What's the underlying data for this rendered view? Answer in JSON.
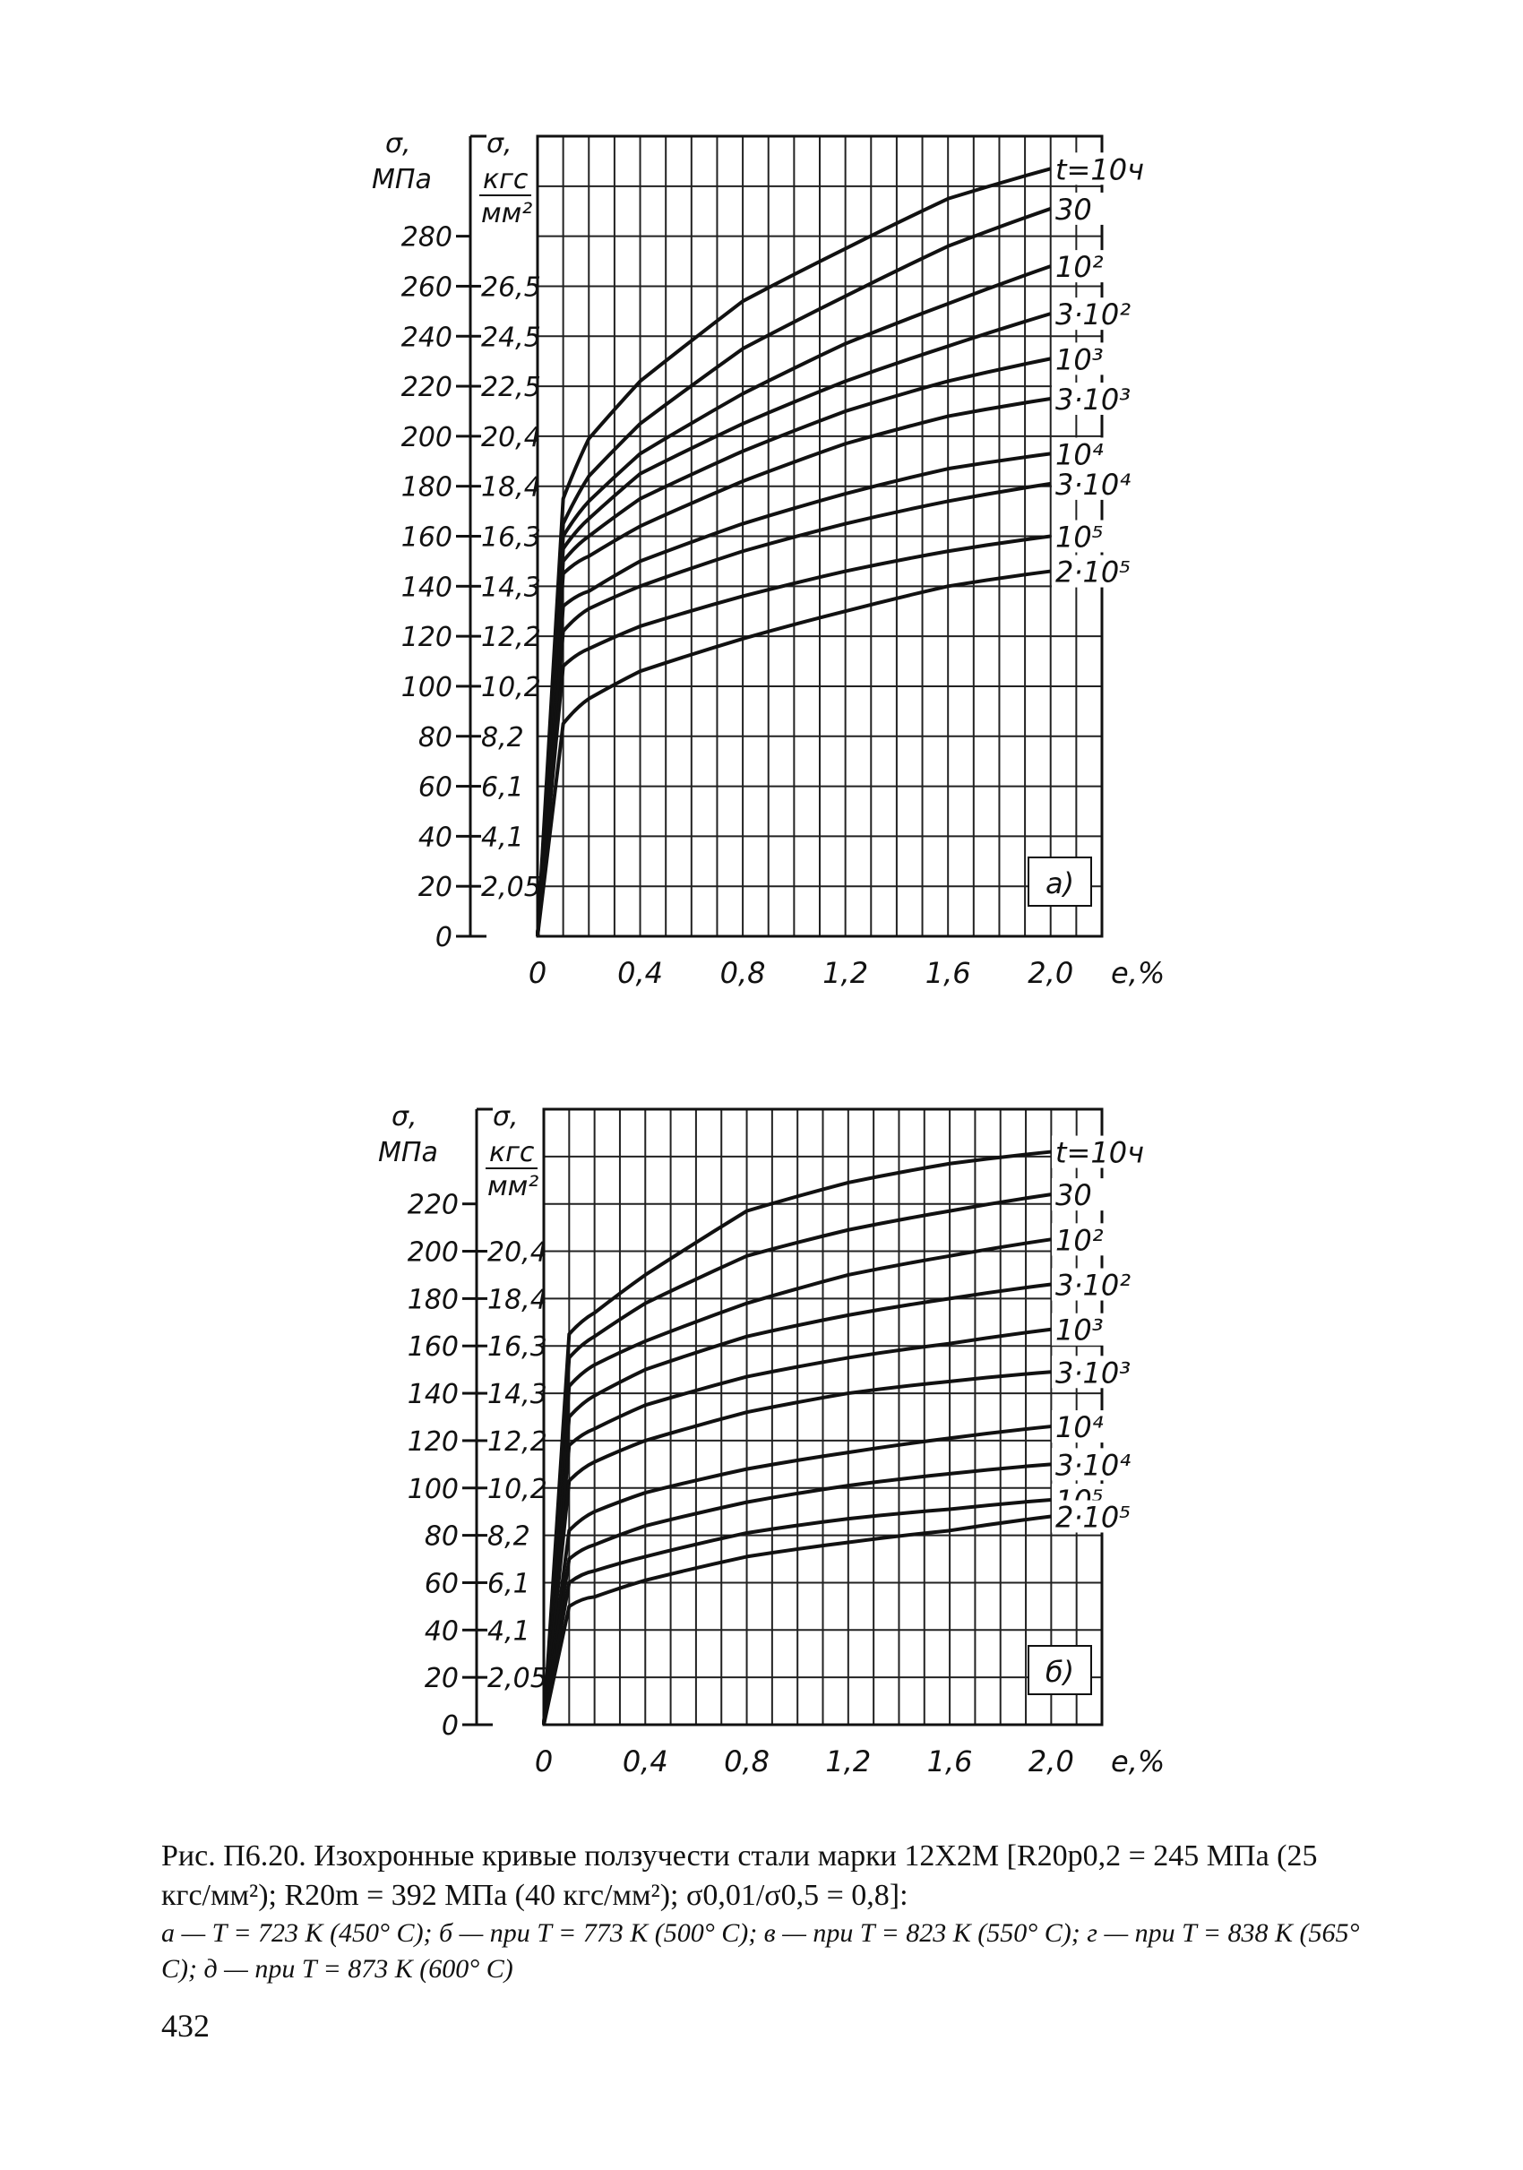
{
  "caption": {
    "title": "Рис. П6.20. Изохронные кривые ползучести стали марки 12Х2М [R20p0,2 = 245 МПа (25 кгс/мм²); R20m = 392 МПа (40 кгс/мм²); σ0,01/σ0,5 = 0,8]:",
    "legend": "а — T = 723 K (450° C); б — при T = 773 K (500° C); в — при T = 823 K (550° C); г — при T = 838 K (565° C); д — при T = 873 K (600° C)"
  },
  "page_number": "432",
  "chart_data": [
    {
      "type": "line",
      "panel_label": "а)",
      "xlabel": "e,%",
      "ylabel": "σ, МПа",
      "ylabel_secondary": "σ, кгс/мм²",
      "xlim": [
        0,
        2.2
      ],
      "ylim": [
        0,
        320
      ],
      "x_ticks": [
        "0",
        "0,4",
        "0,8",
        "1,2",
        "1,6",
        "2,0"
      ],
      "x_tick_values": [
        0,
        0.4,
        0.8,
        1.2,
        1.6,
        2.0
      ],
      "y_ticks": [
        "0",
        "20",
        "40",
        "60",
        "80",
        "100",
        "120",
        "140",
        "160",
        "180",
        "200",
        "220",
        "240",
        "260",
        "280"
      ],
      "y_tick_values": [
        0,
        20,
        40,
        60,
        80,
        100,
        120,
        140,
        160,
        180,
        200,
        220,
        240,
        260,
        280
      ],
      "y2_ticks": [
        "2,05",
        "4,1",
        "6,1",
        "8,2",
        "10,2",
        "12,2",
        "14,3",
        "16,3",
        "18,4",
        "20,4",
        "22,5",
        "24,5",
        "26,5"
      ],
      "y2_tick_values": [
        20,
        40,
        60,
        80,
        100,
        120,
        140,
        160,
        180,
        200,
        220,
        240,
        260
      ],
      "grid": true,
      "x": [
        0.1,
        0.2,
        0.4,
        0.8,
        1.2,
        1.6,
        2.0
      ],
      "series": [
        {
          "name": "t=10ч",
          "values": [
            175,
            199,
            222,
            254,
            275,
            295,
            307
          ]
        },
        {
          "name": "30",
          "values": [
            165,
            184,
            205,
            235,
            256,
            276,
            291
          ]
        },
        {
          "name": "10²",
          "values": [
            160,
            174,
            193,
            217,
            237,
            253,
            268
          ]
        },
        {
          "name": "3·10²",
          "values": [
            155,
            167,
            185,
            205,
            222,
            236,
            249
          ]
        },
        {
          "name": "10³",
          "values": [
            150,
            160,
            175,
            194,
            210,
            222,
            231
          ]
        },
        {
          "name": "3·10³",
          "values": [
            145,
            152,
            164,
            182,
            197,
            208,
            215
          ]
        },
        {
          "name": "10⁴",
          "values": [
            132,
            138,
            150,
            165,
            177,
            187,
            193
          ]
        },
        {
          "name": "3·10⁴",
          "values": [
            122,
            131,
            140,
            154,
            165,
            174,
            181
          ]
        },
        {
          "name": "10⁵",
          "values": [
            108,
            115,
            124,
            136,
            146,
            154,
            160
          ]
        },
        {
          "name": "2·10⁵",
          "values": [
            85,
            95,
            106,
            119,
            130,
            140,
            146
          ]
        }
      ]
    },
    {
      "type": "line",
      "panel_label": "б)",
      "xlabel": "e,%",
      "ylabel": "σ, МПа",
      "ylabel_secondary": "σ, кгс/мм²",
      "xlim": [
        0,
        2.2
      ],
      "ylim": [
        0,
        260
      ],
      "x_ticks": [
        "0",
        "0,4",
        "0,8",
        "1,2",
        "1,6",
        "2,0"
      ],
      "x_tick_values": [
        0,
        0.4,
        0.8,
        1.2,
        1.6,
        2.0
      ],
      "y_ticks": [
        "0",
        "20",
        "40",
        "60",
        "80",
        "100",
        "120",
        "140",
        "160",
        "180",
        "200",
        "220"
      ],
      "y_tick_values": [
        0,
        20,
        40,
        60,
        80,
        100,
        120,
        140,
        160,
        180,
        200,
        220
      ],
      "y2_ticks": [
        "2,05",
        "4,1",
        "6,1",
        "8,2",
        "10,2",
        "12,2",
        "14,3",
        "16,3",
        "18,4",
        "20,4"
      ],
      "y2_tick_values": [
        20,
        40,
        60,
        80,
        100,
        120,
        140,
        160,
        180,
        200
      ],
      "grid": true,
      "x": [
        0.1,
        0.2,
        0.4,
        0.8,
        1.2,
        1.6,
        2.0
      ],
      "series": [
        {
          "name": "t=10ч",
          "values": [
            165,
            174,
            190,
            217,
            229,
            237,
            242
          ]
        },
        {
          "name": "30",
          "values": [
            155,
            164,
            178,
            198,
            209,
            217,
            224
          ]
        },
        {
          "name": "10²",
          "values": [
            143,
            152,
            162,
            178,
            190,
            198,
            205
          ]
        },
        {
          "name": "3·10²",
          "values": [
            130,
            139,
            150,
            164,
            173,
            180,
            186
          ]
        },
        {
          "name": "10³",
          "values": [
            118,
            125,
            135,
            147,
            155,
            161,
            167
          ]
        },
        {
          "name": "3·10³",
          "values": [
            103,
            111,
            120,
            132,
            140,
            145,
            149
          ]
        },
        {
          "name": "10⁴",
          "values": [
            82,
            90,
            98,
            108,
            115,
            121,
            126
          ]
        },
        {
          "name": "3·10⁴",
          "values": [
            70,
            76,
            84,
            94,
            101,
            106,
            110
          ]
        },
        {
          "name": "10⁵",
          "values": [
            60,
            65,
            71,
            81,
            87,
            91,
            95
          ]
        },
        {
          "name": "2·10⁵",
          "values": [
            50,
            54,
            61,
            71,
            77,
            82,
            88
          ]
        }
      ]
    }
  ]
}
